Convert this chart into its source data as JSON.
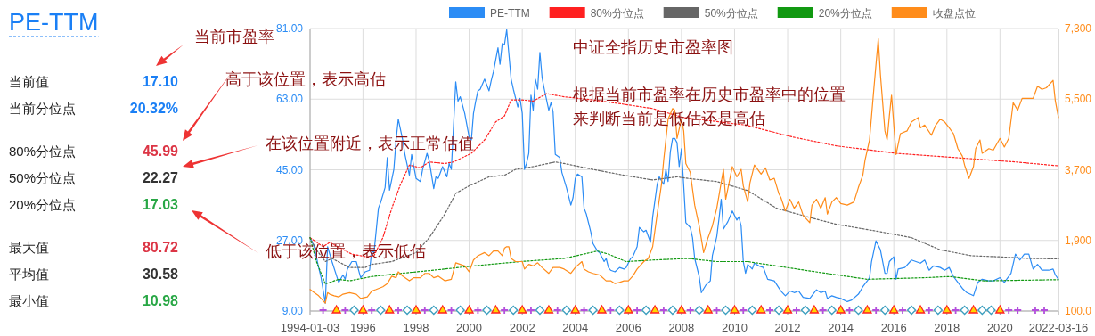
{
  "chart_data": [
    {
      "type": "other",
      "title": "PE-TTM",
      "categories": [
        "当前值",
        "当前分位点",
        "80%分位点",
        "50%分位点",
        "20%分位点",
        "最大值",
        "平均值",
        "最小值"
      ],
      "value_labels": [
        "17.10",
        "20.32%",
        "45.99",
        "22.27",
        "17.03",
        "80.72",
        "30.58",
        "10.98"
      ],
      "colors": [
        "#1a7ff5",
        "#1a7ff5",
        "#dc3545",
        "#333333",
        "#28a745",
        "#dc3545",
        "#333333",
        "#28a745"
      ]
    },
    {
      "type": "line",
      "title": "中证全指历史市盈率图",
      "annotations": [
        "当前市盈率",
        "高于该位置，表示高估",
        "在该位置附近，表示正常估值",
        "低于该位置，表示低估",
        "根据当前市盈率在历史市盈率中的位置",
        "来判断当前是低估还是高估"
      ],
      "xlim": [
        "1994-01-03",
        "2022-03-16"
      ],
      "xticks": [
        {
          "value": "1994-01-03",
          "label": "1994-01-03"
        },
        {
          "value": "1996-01-01",
          "label": "1996"
        },
        {
          "value": "1998-01-01",
          "label": "1998"
        },
        {
          "value": "2000-01-01",
          "label": "2000"
        },
        {
          "value": "2002-01-01",
          "label": "2002"
        },
        {
          "value": "2004-01-01",
          "label": "2004"
        },
        {
          "value": "2006-01-01",
          "label": "2006"
        },
        {
          "value": "2008-01-01",
          "label": "2008"
        },
        {
          "value": "2010-01-01",
          "label": "2010"
        },
        {
          "value": "2012-01-01",
          "label": "2012"
        },
        {
          "value": "2014-01-01",
          "label": "2014"
        },
        {
          "value": "2016-01-01",
          "label": "2016"
        },
        {
          "value": "2018-01-01",
          "label": "2018"
        },
        {
          "value": "2020-01-01",
          "label": "2020"
        },
        {
          "value": "2022-03-16",
          "label": "2022-03-16"
        }
      ],
      "ylim": [
        9,
        81
      ],
      "yticks": [
        {
          "value": 9,
          "label": "9.00"
        },
        {
          "value": 27,
          "label": "27.00"
        },
        {
          "value": 45,
          "label": "45.00"
        },
        {
          "value": 63,
          "label": "63.00"
        },
        {
          "value": 81,
          "label": "81.00"
        }
      ],
      "y2lim": [
        100,
        7300
      ],
      "y2ticks": [
        {
          "value": 100,
          "label": "100.0"
        },
        {
          "value": 1900,
          "label": "1,900"
        },
        {
          "value": 3700,
          "label": "3,700"
        },
        {
          "value": 5500,
          "label": "5,500"
        },
        {
          "value": 7300,
          "label": "7,300"
        }
      ],
      "grid": true,
      "legend": "top",
      "marker": "none",
      "series": [
        {
          "name": "PE-TTM",
          "color": "#2b8cf5",
          "x": [
            "1994-01-03",
            "1994-03",
            "1994-05",
            "1994-06",
            "1994-08",
            "1994-09",
            "1994-11",
            "1995-02",
            "1995-04",
            "1995-05",
            "1995-06",
            "1995-08",
            "1995-10",
            "1995-12",
            "1996-02",
            "1996-04",
            "1996-05",
            "1996-06",
            "1996-08",
            "1996-09",
            "1996-11",
            "1996-12",
            "1997-01",
            "1997-03",
            "1997-04",
            "1997-05",
            "1997-07",
            "1997-08",
            "1997-10",
            "1997-11",
            "1997-12",
            "1998-01",
            "1998-03",
            "1998-04",
            "1998-06",
            "1998-07",
            "1998-09",
            "1998-10",
            "1998-11",
            "1999-01",
            "1999-03",
            "1999-04",
            "1999-05",
            "1999-07",
            "1999-08",
            "1999-09",
            "1999-11",
            "2000-01",
            "2000-02",
            "2000-03",
            "2000-04",
            "2000-05",
            "2000-06",
            "2000-08",
            "2000-10",
            "2000-11",
            "2000-12",
            "2001-02",
            "2001-03",
            "2001-04",
            "2001-05",
            "2001-06",
            "2001-08",
            "2001-09",
            "2001-11",
            "2001-12",
            "2002-01",
            "2002-02",
            "2002-03",
            "2002-04",
            "2002-05",
            "2002-06",
            "2002-07",
            "2002-08",
            "2002-09",
            "2002-10",
            "2002-11",
            "2003-01",
            "2003-02",
            "2003-03",
            "2003-04",
            "2003-06",
            "2003-07",
            "2003-09",
            "2003-11",
            "2003-12",
            "2004-01",
            "2004-02",
            "2004-04",
            "2004-05",
            "2004-06",
            "2004-08",
            "2004-09",
            "2004-11",
            "2004-12",
            "2005-02",
            "2005-03",
            "2005-04",
            "2005-05",
            "2005-07",
            "2005-09",
            "2005-11",
            "2005-12",
            "2006-02",
            "2006-03",
            "2006-05",
            "2006-06",
            "2006-08",
            "2006-09",
            "2006-11",
            "2006-12",
            "2007-02",
            "2007-03",
            "2007-05",
            "2007-06",
            "2007-07",
            "2007-08",
            "2007-09",
            "2007-10",
            "2007-11",
            "2007-12",
            "2008-01",
            "2008-02",
            "2008-03",
            "2008-05",
            "2008-06",
            "2008-07",
            "2008-09",
            "2008-10",
            "2008-12",
            "2009-02",
            "2009-03",
            "2009-05",
            "2009-06",
            "2009-07",
            "2009-08",
            "2009-10",
            "2009-12",
            "2010-02",
            "2010-03",
            "2010-04",
            "2010-05",
            "2010-06",
            "2010-07",
            "2010-09",
            "2010-10",
            "2010-12",
            "2011-02",
            "2011-04",
            "2011-07",
            "2011-10",
            "2011-12",
            "2012-02",
            "2012-04",
            "2012-06",
            "2012-08",
            "2012-11",
            "2013-02",
            "2013-04",
            "2013-06",
            "2013-07",
            "2013-09",
            "2013-11",
            "2014-01",
            "2014-04",
            "2014-06",
            "2014-09",
            "2014-11",
            "2015-01",
            "2015-02",
            "2015-03",
            "2015-05",
            "2015-07",
            "2015-09",
            "2015-10",
            "2015-11",
            "2016-01",
            "2016-02",
            "2016-03",
            "2016-06",
            "2016-09",
            "2016-11",
            "2017-01",
            "2017-03",
            "2017-05",
            "2017-07",
            "2017-10",
            "2017-12",
            "2018-02",
            "2018-04",
            "2018-06",
            "2018-08",
            "2018-10",
            "2019-01",
            "2019-03",
            "2019-05",
            "2019-08",
            "2019-10",
            "2020-01",
            "2020-03",
            "2020-06",
            "2020-08",
            "2020-10",
            "2020-12",
            "2021-02",
            "2021-04",
            "2021-06",
            "2021-08",
            "2021-11",
            "2022-01",
            "2022-02",
            "2022-03-16"
          ],
          "values": [
            27.7,
            25.4,
            20.1,
            17.8,
            11.0,
            25.4,
            21.6,
            16.3,
            18.2,
            17.1,
            19.7,
            21.6,
            21.6,
            17.5,
            19.0,
            19.4,
            24.3,
            23.9,
            35.2,
            36.7,
            40.5,
            48.1,
            39.8,
            45.1,
            52.6,
            57.9,
            52.6,
            48.9,
            43.6,
            48.9,
            45.8,
            42.8,
            42.0,
            45.1,
            49.2,
            47.3,
            40.2,
            43.2,
            42.8,
            45.8,
            43.2,
            46.6,
            45.1,
            67.4,
            62.5,
            63.6,
            59.4,
            53.4,
            52.6,
            59.4,
            62.5,
            65.1,
            65.5,
            68.1,
            65.1,
            67.8,
            70.0,
            76.1,
            71.9,
            77.2,
            76.8,
            80.7,
            68.1,
            65.5,
            61.0,
            63.2,
            59.4,
            45.1,
            46.6,
            49.2,
            64.0,
            60.2,
            68.1,
            65.5,
            74.9,
            68.5,
            65.5,
            60.2,
            62.1,
            59.8,
            48.9,
            48.1,
            44.3,
            40.5,
            36.0,
            37.9,
            42.8,
            43.9,
            43.2,
            35.2,
            33.7,
            29.2,
            26.2,
            24.3,
            23.9,
            21.6,
            22.4,
            20.1,
            19.4,
            19.0,
            20.1,
            19.7,
            20.1,
            22.4,
            22.8,
            25.4,
            30.3,
            29.2,
            29.6,
            26.5,
            33.0,
            41.3,
            43.2,
            41.3,
            45.1,
            42.0,
            49.6,
            53.0,
            53.0,
            51.9,
            45.8,
            50.4,
            40.9,
            31.5,
            30.3,
            27.7,
            22.4,
            17.8,
            13.7,
            15.6,
            16.7,
            23.1,
            28.0,
            32.6,
            37.5,
            29.9,
            31.8,
            34.5,
            32.2,
            33.0,
            30.7,
            21.6,
            18.6,
            20.9,
            19.7,
            21.2,
            20.5,
            20.1,
            17.1,
            16.7,
            14.1,
            12.9,
            14.1,
            13.7,
            14.1,
            12.5,
            12.2,
            14.4,
            13.7,
            14.1,
            12.2,
            12.9,
            12.5,
            12.2,
            11.4,
            11.8,
            13.3,
            15.2,
            16.7,
            17.5,
            21.6,
            26.9,
            24.6,
            18.6,
            18.6,
            21.6,
            22.8,
            17.1,
            19.7,
            20.1,
            22.0,
            21.6,
            21.2,
            22.0,
            19.4,
            20.5,
            20.1,
            19.4,
            20.1,
            17.8,
            16.3,
            14.8,
            13.7,
            12.9,
            16.3,
            17.1,
            16.7,
            16.7,
            17.5,
            16.3,
            18.6,
            23.5,
            22.0,
            23.5,
            23.5,
            19.7,
            20.9,
            19.4,
            19.4,
            19.7,
            18.2,
            17.1
          ]
        },
        {
          "name": "80%分位点",
          "color": "#ff2020",
          "line_style": "dotted",
          "x": [
            "1994-01-03",
            "1994-07",
            "1994-10",
            "1995-03",
            "1995-08",
            "1996-03",
            "1996-06",
            "1996-10",
            "1997-02",
            "1997-06",
            "1997-10",
            "1998-03",
            "1998-07",
            "1999-02",
            "1999-06",
            "2000-02",
            "2000-08",
            "2001-01",
            "2001-05",
            "2001-08",
            "2002-01",
            "2002-06",
            "2002-12",
            "2003-08",
            "2004-09",
            "2005-11",
            "2006-12",
            "2008-02",
            "2010-06",
            "2012-03",
            "2013-11",
            "2016-02",
            "2018-05",
            "2020-08",
            "2022-03-16"
          ],
          "values": [
            27.7,
            25.4,
            26.5,
            25.0,
            23.5,
            22.8,
            23.1,
            27.7,
            35.2,
            41.3,
            46.2,
            45.5,
            47.0,
            46.6,
            47.0,
            49.2,
            52.6,
            57.2,
            58.7,
            62.8,
            62.8,
            62.5,
            64.4,
            63.6,
            62.8,
            61.7,
            60.6,
            58.3,
            56.4,
            53.4,
            51.1,
            49.2,
            48.1,
            47.0,
            46.0
          ]
        },
        {
          "name": "50%分位点",
          "color": "#666666",
          "line_style": "dotted",
          "x": [
            "1994-01-03",
            "1994-04",
            "1994-08",
            "1994-11",
            "1995-07",
            "1996-02",
            "1996-05",
            "1997-02",
            "1998-01",
            "1998-07",
            "1999-02",
            "1999-07",
            "2000-01",
            "2000-10",
            "2001-05",
            "2001-10",
            "2002-06",
            "2003-04",
            "2003-08",
            "2004-09",
            "2005-11",
            "2006-12",
            "2007-11",
            "2008-04",
            "2009-05",
            "2010-07",
            "2011-08",
            "2012-10",
            "2013-11",
            "2015-07",
            "2016-09",
            "2017-10",
            "2018-12",
            "2020-01",
            "2021-02",
            "2022-03-16"
          ],
          "values": [
            27.7,
            24.6,
            21.6,
            22.4,
            20.1,
            20.1,
            20.9,
            21.6,
            23.9,
            27.7,
            33.7,
            39.0,
            40.9,
            43.2,
            43.6,
            45.1,
            45.8,
            47.0,
            46.6,
            45.1,
            43.6,
            42.4,
            43.2,
            42.8,
            42.0,
            39.7,
            35.2,
            33.0,
            31.1,
            29.2,
            27.7,
            24.6,
            23.1,
            22.8,
            22.4,
            22.3
          ]
        },
        {
          "name": "20%分位点",
          "color": "#119911",
          "line_style": "dotted",
          "x": [
            "1994-01-03",
            "1994-04",
            "1994-08",
            "1995-02",
            "1995-07",
            "1996-05",
            "1997-06",
            "1998-07",
            "2000-03",
            "2001-12",
            "2003-08",
            "2004-11",
            "2005-04",
            "2005-12",
            "2006-12",
            "2008-04",
            "2009-05",
            "2010-07",
            "2012-10",
            "2015-01",
            "2017-03",
            "2018-02",
            "2019-06",
            "2022-03-16"
          ],
          "values": [
            27.7,
            21.6,
            15.9,
            17.1,
            16.7,
            17.8,
            18.6,
            19.3,
            20.5,
            21.6,
            22.4,
            24.3,
            23.5,
            21.6,
            22.0,
            22.4,
            21.6,
            21.6,
            19.3,
            17.1,
            17.5,
            17.8,
            16.7,
            17.0
          ]
        },
        {
          "name": "收盘点位",
          "color": "#ff8c1a",
          "axis": "y2",
          "x": [
            "1994-01-03",
            "1994-03",
            "1994-05",
            "1994-08",
            "1994-09",
            "1994-10",
            "1994-12",
            "1995-02",
            "1995-04",
            "1995-07",
            "1995-10",
            "1995-12",
            "1996-03",
            "1996-05",
            "1996-07",
            "1996-10",
            "1996-12",
            "1997-02",
            "1997-04",
            "1997-05",
            "1997-07",
            "1997-10",
            "1997-12",
            "1998-03",
            "1998-05",
            "1998-07",
            "1998-09",
            "1998-11",
            "1999-02",
            "1999-05",
            "1999-07",
            "1999-09",
            "1999-11",
            "2000-01",
            "2000-03",
            "2000-05",
            "2000-08",
            "2000-10",
            "2000-12",
            "2001-02",
            "2001-04",
            "2001-05",
            "2001-06",
            "2001-07",
            "2001-08",
            "2001-10",
            "2002-01",
            "2002-02",
            "2002-04",
            "2002-06",
            "2002-08",
            "2002-10",
            "2003-01",
            "2003-03",
            "2003-06",
            "2003-08",
            "2003-11",
            "2004-01",
            "2004-04",
            "2004-05",
            "2004-07",
            "2004-09",
            "2004-12",
            "2005-03",
            "2005-05",
            "2005-07",
            "2005-09",
            "2005-11",
            "2006-01",
            "2006-03",
            "2006-05",
            "2006-08",
            "2006-10",
            "2006-12",
            "2007-02",
            "2007-04",
            "2007-05",
            "2007-07",
            "2007-09",
            "2007-10",
            "2007-11",
            "2008-01",
            "2008-02",
            "2008-03",
            "2008-05",
            "2008-07",
            "2008-09",
            "2008-11",
            "2009-01",
            "2009-03",
            "2009-05",
            "2009-08",
            "2009-09",
            "2009-12",
            "2010-02",
            "2010-04",
            "2010-05",
            "2010-07",
            "2010-08",
            "2010-10",
            "2011-01",
            "2011-03",
            "2011-05",
            "2011-07",
            "2011-09",
            "2011-10",
            "2011-12",
            "2012-02",
            "2012-04",
            "2012-06",
            "2012-08",
            "2012-11",
            "2012-12",
            "2013-02",
            "2013-04",
            "2013-06",
            "2013-07",
            "2013-09",
            "2013-11",
            "2014-01",
            "2014-04",
            "2014-07",
            "2014-09",
            "2014-11",
            "2014-12",
            "2015-02",
            "2015-04",
            "2015-06",
            "2015-07",
            "2015-09",
            "2015-10",
            "2015-11",
            "2015-12",
            "2016-02",
            "2016-04",
            "2016-07",
            "2016-09",
            "2016-12",
            "2017-01",
            "2017-03",
            "2017-06",
            "2017-08",
            "2017-10",
            "2017-12",
            "2018-02",
            "2018-04",
            "2018-06",
            "2018-08",
            "2018-09",
            "2018-11",
            "2019-01",
            "2019-02",
            "2019-04",
            "2019-05",
            "2019-08",
            "2019-10",
            "2020-01",
            "2020-03",
            "2020-05",
            "2020-07",
            "2020-09",
            "2020-11",
            "2021-02",
            "2021-04",
            "2021-06",
            "2021-08",
            "2021-10",
            "2022-01",
            "2022-02",
            "2022-03-16"
          ],
          "values": [
            650,
            570,
            490,
            300,
            570,
            530,
            490,
            460,
            530,
            570,
            530,
            420,
            460,
            610,
            650,
            720,
            800,
            990,
            950,
            1100,
            990,
            870,
            950,
            950,
            1060,
            1060,
            950,
            990,
            870,
            910,
            1330,
            1290,
            1250,
            1100,
            1400,
            1510,
            1590,
            1510,
            1630,
            1630,
            1510,
            1700,
            1740,
            1740,
            1440,
            1360,
            1360,
            1170,
            1290,
            1250,
            1330,
            1210,
            1060,
            1210,
            1210,
            1170,
            1060,
            1210,
            1360,
            1170,
            1100,
            1060,
            1020,
            870,
            870,
            800,
            830,
            870,
            870,
            990,
            1170,
            1360,
            1440,
            1740,
            2570,
            3330,
            3940,
            4990,
            5260,
            5220,
            4500,
            4990,
            4690,
            3860,
            3630,
            2800,
            2270,
            1590,
            1970,
            2270,
            2720,
            3710,
            2950,
            3780,
            3520,
            3710,
            3290,
            2880,
            3370,
            3820,
            3590,
            3750,
            3440,
            3480,
            3100,
            2990,
            2650,
            2950,
            2720,
            2880,
            2540,
            2350,
            2800,
            2950,
            2720,
            2990,
            2570,
            2880,
            2990,
            2840,
            2800,
            2880,
            3250,
            3560,
            3940,
            4460,
            5750,
            7040,
            6130,
            4690,
            4460,
            5070,
            5600,
            4090,
            4620,
            4690,
            4920,
            5030,
            4770,
            4840,
            4580,
            4840,
            4990,
            4920,
            4770,
            4620,
            4240,
            4050,
            3820,
            3480,
            3780,
            4240,
            4460,
            4120,
            4240,
            4200,
            4500,
            4280,
            4500,
            5410,
            5220,
            5520,
            5520,
            5520,
            5830,
            5750,
            5790,
            5980,
            5450,
            5030
          ]
        },
        {
          "type": "scatter",
          "marker": "cross",
          "color": "#b44fdd",
          "x": [
            "1994-07",
            "1995-05",
            "1996-05",
            "1997-05",
            "1998-05",
            "1999-05",
            "2000-05",
            "2001-05",
            "2002-05",
            "2003-05",
            "2004-05",
            "2005-05",
            "2006-05",
            "2007-05",
            "2008-05",
            "2009-05",
            "2010-05",
            "2011-05",
            "2012-05",
            "2013-05",
            "2014-05",
            "2015-05",
            "2016-05",
            "2017-05",
            "2018-05",
            "2020-05",
            "2020-09",
            "2021-05",
            "2021-09"
          ],
          "values": [
            9,
            9,
            9,
            9,
            9,
            9,
            9,
            9,
            9,
            9,
            9,
            9,
            9,
            9,
            9,
            9,
            9,
            9,
            9,
            9,
            9,
            9,
            9,
            9,
            9,
            9,
            9,
            9,
            9
          ]
        },
        {
          "type": "scatter",
          "marker": "triangle",
          "color": "#ff2020",
          "x": [
            "1995-01",
            "1996-01",
            "1997-01",
            "1998-01",
            "1999-01",
            "2000-01",
            "2001-01",
            "2002-01",
            "2003-01",
            "2004-01",
            "2005-01",
            "2006-01",
            "2007-01",
            "2008-01",
            "2009-01",
            "2010-01",
            "2011-01",
            "2012-01",
            "2013-01",
            "2014-01",
            "2015-01",
            "2016-01",
            "2017-01",
            "2018-01",
            "2019-01",
            "2020-01"
          ],
          "values": [
            9,
            9,
            9,
            9,
            9,
            9,
            9,
            9,
            9,
            9,
            9,
            9,
            9,
            9,
            9,
            9,
            9,
            9,
            9,
            9,
            9,
            9,
            9,
            9,
            9,
            9
          ]
        },
        {
          "type": "scatter",
          "marker": "diamond",
          "color": "#3c9fbf",
          "x": [
            "1995-09",
            "1996-09",
            "1997-09",
            "1998-09",
            "1999-09",
            "2000-09",
            "2001-09",
            "2002-09",
            "2003-09",
            "2004-09",
            "2005-09",
            "2006-09",
            "2007-09",
            "2008-09",
            "2009-09",
            "2010-09",
            "2011-09",
            "2012-09",
            "2013-09",
            "2014-09",
            "2015-09",
            "2016-09",
            "2017-09",
            "2018-09",
            "2019-05",
            "2019-09"
          ],
          "values": [
            9,
            9,
            9,
            9,
            9,
            9,
            9,
            9,
            9,
            9,
            9,
            9,
            9,
            9,
            9,
            9,
            9,
            9,
            9,
            9,
            9,
            9,
            9,
            9,
            9,
            9
          ]
        }
      ]
    }
  ]
}
